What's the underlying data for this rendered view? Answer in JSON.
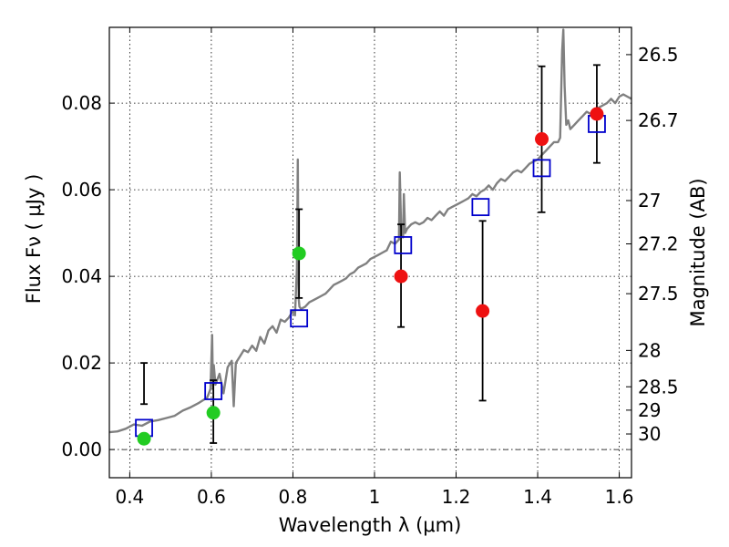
{
  "chart_data": {
    "type": "scatter",
    "xlabel": "Wavelength  λ (μm)",
    "ylabel": "Flux  Fν  ( μJy )",
    "ylabel_right": "Magnitude (AB)",
    "xlim": [
      0.35,
      1.63
    ],
    "ylim": [
      -0.0065,
      0.0975
    ],
    "x_ticks": [
      0.4,
      0.6,
      0.8,
      1.0,
      1.2,
      1.4,
      1.6
    ],
    "x_tick_labels": [
      "0.4",
      "0.6",
      "0.8",
      "1",
      "1.2",
      "1.4",
      "1.6"
    ],
    "y_ticks": [
      0.0,
      0.02,
      0.04,
      0.06,
      0.08
    ],
    "y_tick_labels": [
      "0.00",
      "0.02",
      "0.04",
      "0.06",
      "0.08"
    ],
    "right_axis": {
      "ticks": [
        {
          "label": "26.5",
          "flux": 0.0912
        },
        {
          "label": "26.7",
          "flux": 0.076
        },
        {
          "label": "27",
          "flux": 0.0575
        },
        {
          "label": "27.2",
          "flux": 0.0475
        },
        {
          "label": "27.5",
          "flux": 0.036
        },
        {
          "label": "28",
          "flux": 0.0229
        },
        {
          "label": "28.5",
          "flux": 0.0145
        },
        {
          "label": "29",
          "flux": 0.0091
        },
        {
          "label": "30",
          "flux": 0.0036
        }
      ]
    },
    "grid": true,
    "zero_line": true,
    "series": [
      {
        "kind": "spectrum-line",
        "color": "#808080",
        "x": [
          0.35,
          0.37,
          0.39,
          0.41,
          0.43,
          0.45,
          0.47,
          0.49,
          0.51,
          0.53,
          0.55,
          0.57,
          0.59,
          0.598,
          0.602,
          0.604,
          0.606,
          0.61,
          0.62,
          0.63,
          0.64,
          0.65,
          0.655,
          0.66,
          0.67,
          0.68,
          0.69,
          0.7,
          0.71,
          0.72,
          0.73,
          0.74,
          0.75,
          0.76,
          0.77,
          0.78,
          0.79,
          0.8,
          0.805,
          0.81,
          0.812,
          0.814,
          0.816,
          0.82,
          0.83,
          0.84,
          0.85,
          0.86,
          0.87,
          0.88,
          0.89,
          0.9,
          0.91,
          0.92,
          0.93,
          0.94,
          0.95,
          0.96,
          0.97,
          0.98,
          0.99,
          1.0,
          1.01,
          1.02,
          1.03,
          1.04,
          1.05,
          1.06,
          1.062,
          1.065,
          1.07,
          1.072,
          1.075,
          1.08,
          1.09,
          1.1,
          1.11,
          1.12,
          1.13,
          1.14,
          1.15,
          1.16,
          1.17,
          1.18,
          1.19,
          1.2,
          1.21,
          1.22,
          1.23,
          1.24,
          1.25,
          1.26,
          1.27,
          1.28,
          1.29,
          1.3,
          1.31,
          1.32,
          1.33,
          1.34,
          1.35,
          1.36,
          1.37,
          1.38,
          1.39,
          1.4,
          1.41,
          1.42,
          1.43,
          1.44,
          1.45,
          1.455,
          1.46,
          1.463,
          1.466,
          1.47,
          1.475,
          1.48,
          1.49,
          1.5,
          1.51,
          1.52,
          1.53,
          1.54,
          1.55,
          1.56,
          1.57,
          1.58,
          1.59,
          1.6,
          1.61,
          1.62,
          1.63
        ],
        "y": [
          0.004,
          0.0042,
          0.0048,
          0.0058,
          0.0055,
          0.0065,
          0.0068,
          0.0073,
          0.0078,
          0.009,
          0.0098,
          0.0108,
          0.012,
          0.014,
          0.0265,
          0.014,
          0.0195,
          0.015,
          0.0175,
          0.013,
          0.019,
          0.0205,
          0.01,
          0.02,
          0.0215,
          0.023,
          0.0225,
          0.024,
          0.0228,
          0.026,
          0.0245,
          0.0275,
          0.0285,
          0.027,
          0.03,
          0.0295,
          0.0305,
          0.032,
          0.031,
          0.042,
          0.067,
          0.035,
          0.033,
          0.0325,
          0.033,
          0.034,
          0.0345,
          0.035,
          0.0355,
          0.036,
          0.037,
          0.038,
          0.0385,
          0.039,
          0.0395,
          0.0405,
          0.041,
          0.042,
          0.0425,
          0.043,
          0.044,
          0.0445,
          0.045,
          0.0455,
          0.046,
          0.048,
          0.0475,
          0.0485,
          0.064,
          0.052,
          0.049,
          0.059,
          0.05,
          0.051,
          0.052,
          0.0525,
          0.052,
          0.0525,
          0.0535,
          0.053,
          0.054,
          0.055,
          0.054,
          0.0555,
          0.056,
          0.0565,
          0.057,
          0.0575,
          0.058,
          0.059,
          0.0585,
          0.0595,
          0.06,
          0.061,
          0.06,
          0.0615,
          0.0625,
          0.062,
          0.063,
          0.064,
          0.0645,
          0.064,
          0.065,
          0.066,
          0.0665,
          0.067,
          0.068,
          0.069,
          0.07,
          0.071,
          0.071,
          0.072,
          0.092,
          0.097,
          0.084,
          0.075,
          0.076,
          0.074,
          0.075,
          0.076,
          0.077,
          0.078,
          0.0775,
          0.0785,
          0.079,
          0.0795,
          0.08,
          0.081,
          0.08,
          0.0815,
          0.082,
          0.0815,
          0.081
        ]
      },
      {
        "kind": "model-photometry",
        "marker": "open-square",
        "color": "#0000cc",
        "x": [
          0.435,
          0.605,
          0.815,
          1.07,
          1.26,
          1.41,
          1.545
        ],
        "y": [
          0.005,
          0.0135,
          0.0303,
          0.0472,
          0.056,
          0.065,
          0.0752
        ]
      },
      {
        "kind": "observed-detections",
        "marker": "filled-circle",
        "color": "#22cc22",
        "x": [
          0.435,
          0.605,
          0.815
        ],
        "y": [
          0.0025,
          0.0085,
          0.0453
        ],
        "yerr_low": [
          0.0105,
          0.0015,
          0.035
        ],
        "yerr_high": [
          0.02,
          0.016,
          0.0555
        ]
      },
      {
        "kind": "observed-upper",
        "marker": "filled-circle",
        "color": "#ee1111",
        "x": [
          1.065,
          1.265,
          1.41,
          1.545
        ],
        "y": [
          0.04,
          0.032,
          0.0717,
          0.0775
        ],
        "yerr_low": [
          0.0283,
          0.0113,
          0.0548,
          0.0662
        ],
        "yerr_high": [
          0.052,
          0.0528,
          0.0885,
          0.0888
        ]
      }
    ]
  }
}
